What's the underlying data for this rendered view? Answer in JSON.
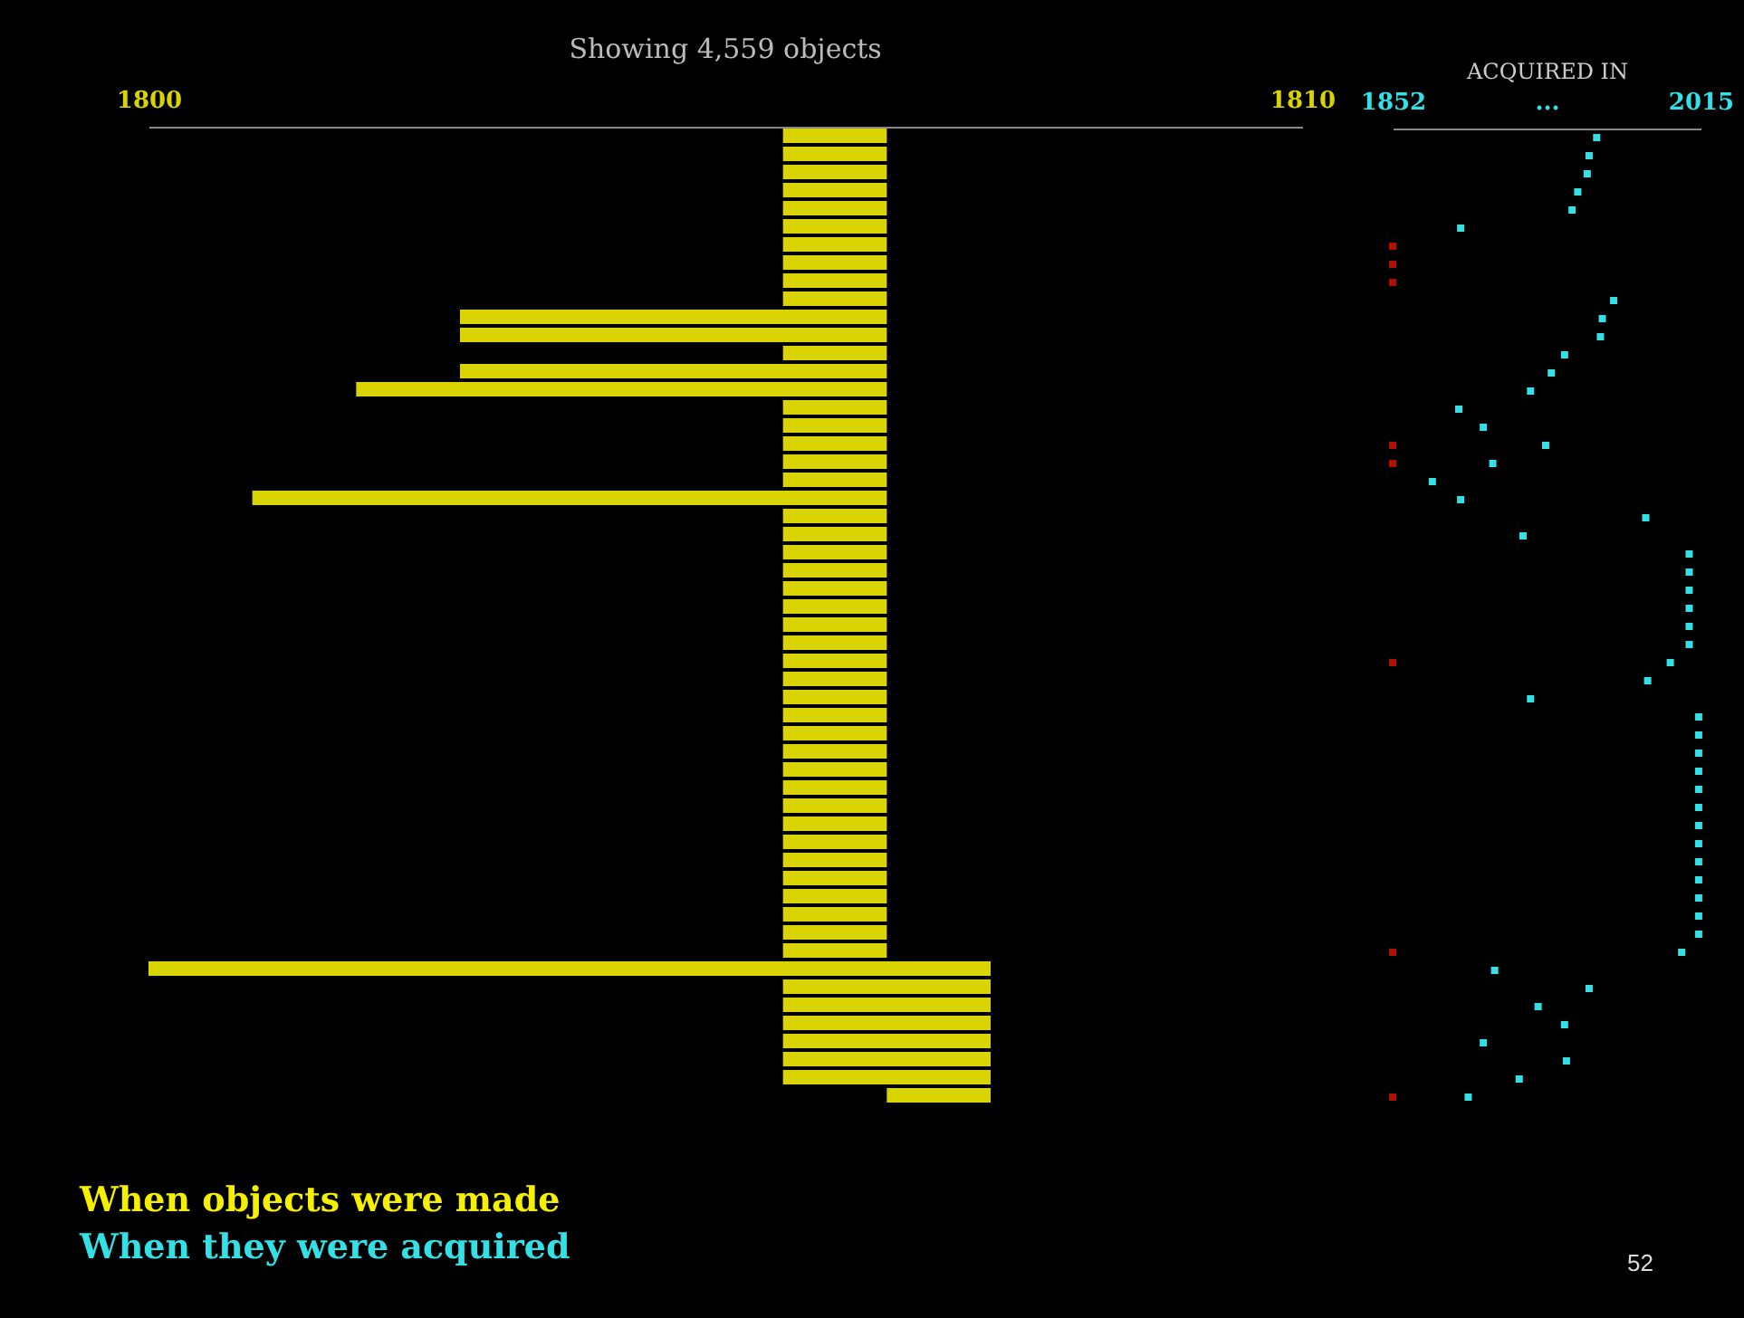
{
  "chart_data": [
    {
      "type": "bar",
      "orientation": "horizontal",
      "title": "Showing 4,559 objects",
      "categories": [
        null,
        null,
        null,
        null,
        null,
        null,
        null,
        null,
        null,
        null,
        null,
        null,
        null,
        null,
        null,
        null,
        null,
        null,
        null,
        null,
        null,
        null,
        null,
        null,
        null,
        null,
        null,
        null,
        null,
        null,
        null,
        null,
        null,
        null,
        null,
        null,
        null,
        null,
        null,
        null,
        null,
        null,
        null,
        null,
        null,
        null,
        null,
        null,
        null,
        null,
        null,
        null,
        null,
        null
      ],
      "xlim": [
        1800,
        1810
      ],
      "xticks": [
        1800,
        1810
      ],
      "series": [
        {
          "name": "When objects were made",
          "color": "#d9d400",
          "base": [
            1805.5,
            1805.5,
            1805.5,
            1805.5,
            1805.5,
            1805.5,
            1805.5,
            1805.5,
            1805.5,
            1805.5,
            1802.7,
            1802.7,
            1805.5,
            1802.7,
            1801.8,
            1805.5,
            1805.5,
            1805.5,
            1805.5,
            1805.5,
            1800.9,
            1805.5,
            1805.5,
            1805.5,
            1805.5,
            1805.5,
            1805.5,
            1805.5,
            1805.5,
            1805.5,
            1805.5,
            1805.5,
            1805.5,
            1805.5,
            1805.5,
            1805.5,
            1805.5,
            1805.5,
            1805.5,
            1805.5,
            1805.5,
            1805.5,
            1805.5,
            1805.5,
            1805.5,
            1805.5,
            1800,
            1805.5,
            1805.5,
            1805.5,
            1805.5,
            1805.5,
            1805.5,
            1806.4
          ],
          "values": [
            0.9,
            0.9,
            0.9,
            0.9,
            0.9,
            0.9,
            0.9,
            0.9,
            0.9,
            0.9,
            3.7,
            3.7,
            0.9,
            3.7,
            4.6,
            0.9,
            0.9,
            0.9,
            0.9,
            0.9,
            5.5,
            0.9,
            0.9,
            0.9,
            0.9,
            0.9,
            0.9,
            0.9,
            0.9,
            0.9,
            0.9,
            0.9,
            0.9,
            0.9,
            0.9,
            0.9,
            0.9,
            0.9,
            0.9,
            0.9,
            0.9,
            0.9,
            0.9,
            0.9,
            0.9,
            0.9,
            7.3,
            1.8,
            1.8,
            1.8,
            1.8,
            1.8,
            1.8,
            0.9
          ]
        }
      ]
    },
    {
      "type": "scatter",
      "orientation": "horizontal",
      "xlabel": "ACQUIRED IN",
      "marker": "square",
      "annotations": [
        "52"
      ],
      "categories": [
        null,
        null,
        null,
        null,
        null,
        null,
        null,
        null,
        null,
        null,
        null,
        null,
        null,
        null,
        null,
        null,
        null,
        null,
        null,
        null,
        null,
        null,
        null,
        null,
        null,
        null,
        null,
        null,
        null,
        null,
        null,
        null,
        null,
        null,
        null,
        null,
        null,
        null,
        null,
        null,
        null,
        null,
        null,
        null,
        null,
        null,
        null,
        null,
        null,
        null,
        null,
        null,
        null,
        null
      ],
      "xlim": [
        1852,
        2015
      ],
      "xticks": [
        1852,
        {
          "value": 1933.5,
          "label": "..."
        },
        2015
      ],
      "series": [
        {
          "name": "When they were acquired",
          "color": "#33e0e6",
          "values": [
            1960,
            1956,
            1955,
            1950,
            1947,
            1888,
            null,
            null,
            null,
            1969,
            1963,
            1962,
            1943,
            1936,
            1925,
            1887,
            1900,
            1933,
            1905,
            1873,
            1888,
            1986,
            1921,
            2009,
            2009,
            2009,
            2009,
            2009,
            2009,
            1999,
            1987,
            1925,
            2014,
            2014,
            2014,
            2014,
            2014,
            2014,
            2014,
            2014,
            2014,
            2014,
            2014,
            2014,
            2014,
            2005,
            1906,
            1956,
            1929,
            1943,
            1900,
            1944,
            1919,
            1892
          ]
        },
        {
          "color": "#b01000",
          "values": [
            null,
            null,
            null,
            null,
            null,
            null,
            1852,
            1852,
            1852,
            null,
            null,
            null,
            null,
            null,
            null,
            null,
            null,
            1852,
            1852,
            null,
            null,
            null,
            null,
            null,
            null,
            null,
            null,
            null,
            null,
            1852,
            null,
            null,
            null,
            null,
            null,
            null,
            null,
            null,
            null,
            null,
            null,
            null,
            null,
            null,
            null,
            1852,
            null,
            null,
            null,
            null,
            null,
            null,
            null,
            1852
          ]
        }
      ]
    }
  ]
}
